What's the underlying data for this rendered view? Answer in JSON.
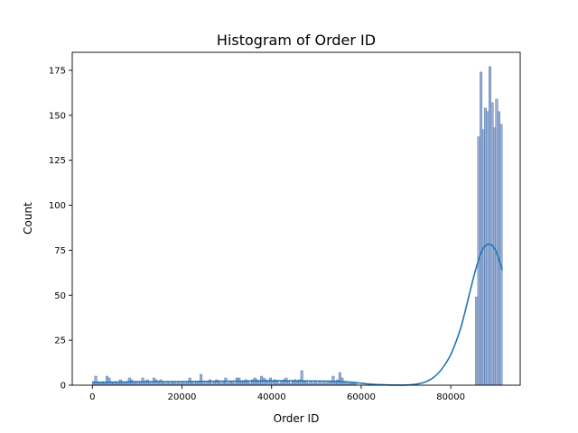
{
  "chart_data": {
    "type": "bar",
    "title": "Histogram of Order ID",
    "xlabel": "Order ID",
    "ylabel": "Count",
    "xlim": [
      -4500,
      95500
    ],
    "ylim": [
      0,
      185
    ],
    "xticks": [
      0,
      20000,
      40000,
      60000,
      80000
    ],
    "yticks": [
      0,
      25,
      50,
      75,
      100,
      125,
      150,
      175
    ],
    "grid": false,
    "bar_color": "#4c72b0",
    "kde_color": "#1f77b4",
    "bin_width": 500,
    "bins": [
      {
        "x0": 0,
        "count": 2
      },
      {
        "x0": 500,
        "count": 5
      },
      {
        "x0": 1000,
        "count": 2
      },
      {
        "x0": 1500,
        "count": 1
      },
      {
        "x0": 2000,
        "count": 2
      },
      {
        "x0": 2500,
        "count": 1
      },
      {
        "x0": 3000,
        "count": 5
      },
      {
        "x0": 3500,
        "count": 4
      },
      {
        "x0": 4000,
        "count": 2
      },
      {
        "x0": 4500,
        "count": 1
      },
      {
        "x0": 5000,
        "count": 2
      },
      {
        "x0": 5500,
        "count": 1
      },
      {
        "x0": 6000,
        "count": 3
      },
      {
        "x0": 6500,
        "count": 2
      },
      {
        "x0": 7000,
        "count": 1
      },
      {
        "x0": 7500,
        "count": 2
      },
      {
        "x0": 8000,
        "count": 4
      },
      {
        "x0": 8500,
        "count": 3
      },
      {
        "x0": 9000,
        "count": 2
      },
      {
        "x0": 9500,
        "count": 2
      },
      {
        "x0": 10000,
        "count": 1
      },
      {
        "x0": 10500,
        "count": 2
      },
      {
        "x0": 11000,
        "count": 4
      },
      {
        "x0": 11500,
        "count": 2
      },
      {
        "x0": 12000,
        "count": 3
      },
      {
        "x0": 12500,
        "count": 2
      },
      {
        "x0": 13000,
        "count": 1
      },
      {
        "x0": 13500,
        "count": 4
      },
      {
        "x0": 14000,
        "count": 3
      },
      {
        "x0": 14500,
        "count": 2
      },
      {
        "x0": 15000,
        "count": 3
      },
      {
        "x0": 15500,
        "count": 2
      },
      {
        "x0": 16000,
        "count": 1
      },
      {
        "x0": 16500,
        "count": 2
      },
      {
        "x0": 17000,
        "count": 1
      },
      {
        "x0": 17500,
        "count": 2
      },
      {
        "x0": 18000,
        "count": 2
      },
      {
        "x0": 18500,
        "count": 1
      },
      {
        "x0": 19000,
        "count": 2
      },
      {
        "x0": 19500,
        "count": 1
      },
      {
        "x0": 20000,
        "count": 2
      },
      {
        "x0": 20500,
        "count": 1
      },
      {
        "x0": 21000,
        "count": 2
      },
      {
        "x0": 21500,
        "count": 4
      },
      {
        "x0": 22000,
        "count": 2
      },
      {
        "x0": 22500,
        "count": 1
      },
      {
        "x0": 23000,
        "count": 2
      },
      {
        "x0": 23500,
        "count": 2
      },
      {
        "x0": 24000,
        "count": 6
      },
      {
        "x0": 24500,
        "count": 2
      },
      {
        "x0": 25000,
        "count": 1
      },
      {
        "x0": 25500,
        "count": 2
      },
      {
        "x0": 26000,
        "count": 3
      },
      {
        "x0": 26500,
        "count": 1
      },
      {
        "x0": 27000,
        "count": 2
      },
      {
        "x0": 27500,
        "count": 3
      },
      {
        "x0": 28000,
        "count": 2
      },
      {
        "x0": 28500,
        "count": 1
      },
      {
        "x0": 29000,
        "count": 2
      },
      {
        "x0": 29500,
        "count": 4
      },
      {
        "x0": 30000,
        "count": 1
      },
      {
        "x0": 30500,
        "count": 2
      },
      {
        "x0": 31000,
        "count": 2
      },
      {
        "x0": 31500,
        "count": 1
      },
      {
        "x0": 32000,
        "count": 4
      },
      {
        "x0": 32500,
        "count": 4
      },
      {
        "x0": 33000,
        "count": 2
      },
      {
        "x0": 33500,
        "count": 2
      },
      {
        "x0": 34000,
        "count": 3
      },
      {
        "x0": 34500,
        "count": 2
      },
      {
        "x0": 35000,
        "count": 1
      },
      {
        "x0": 35500,
        "count": 3
      },
      {
        "x0": 36000,
        "count": 4
      },
      {
        "x0": 36500,
        "count": 3
      },
      {
        "x0": 37000,
        "count": 2
      },
      {
        "x0": 37500,
        "count": 5
      },
      {
        "x0": 38000,
        "count": 4
      },
      {
        "x0": 38500,
        "count": 3
      },
      {
        "x0": 39000,
        "count": 2
      },
      {
        "x0": 39500,
        "count": 4
      },
      {
        "x0": 40000,
        "count": 2
      },
      {
        "x0": 40500,
        "count": 3
      },
      {
        "x0": 41000,
        "count": 2
      },
      {
        "x0": 41500,
        "count": 1
      },
      {
        "x0": 42000,
        "count": 2
      },
      {
        "x0": 42500,
        "count": 3
      },
      {
        "x0": 43000,
        "count": 4
      },
      {
        "x0": 43500,
        "count": 2
      },
      {
        "x0": 44000,
        "count": 1
      },
      {
        "x0": 44500,
        "count": 2
      },
      {
        "x0": 45000,
        "count": 3
      },
      {
        "x0": 45500,
        "count": 2
      },
      {
        "x0": 46000,
        "count": 3
      },
      {
        "x0": 46500,
        "count": 8
      },
      {
        "x0": 47000,
        "count": 2
      },
      {
        "x0": 47500,
        "count": 2
      },
      {
        "x0": 48000,
        "count": 1
      },
      {
        "x0": 48500,
        "count": 2
      },
      {
        "x0": 49000,
        "count": 1
      },
      {
        "x0": 49500,
        "count": 2
      },
      {
        "x0": 50000,
        "count": 1
      },
      {
        "x0": 50500,
        "count": 2
      },
      {
        "x0": 51000,
        "count": 1
      },
      {
        "x0": 51500,
        "count": 2
      },
      {
        "x0": 52000,
        "count": 1
      },
      {
        "x0": 52500,
        "count": 2
      },
      {
        "x0": 53000,
        "count": 2
      },
      {
        "x0": 53500,
        "count": 5
      },
      {
        "x0": 54000,
        "count": 2
      },
      {
        "x0": 54500,
        "count": 3
      },
      {
        "x0": 55000,
        "count": 7
      },
      {
        "x0": 55500,
        "count": 4
      },
      {
        "x0": 56000,
        "count": 2
      },
      {
        "x0": 56500,
        "count": 1
      },
      {
        "x0": 57000,
        "count": 1
      },
      {
        "x0": 57500,
        "count": 1
      },
      {
        "x0": 58000,
        "count": 1
      },
      {
        "x0": 58500,
        "count": 1
      },
      {
        "x0": 85500,
        "count": 49
      },
      {
        "x0": 86000,
        "count": 138
      },
      {
        "x0": 86500,
        "count": 174
      },
      {
        "x0": 87000,
        "count": 142
      },
      {
        "x0": 87500,
        "count": 154
      },
      {
        "x0": 88000,
        "count": 152
      },
      {
        "x0": 88500,
        "count": 177
      },
      {
        "x0": 89000,
        "count": 157
      },
      {
        "x0": 89500,
        "count": 143
      },
      {
        "x0": 90000,
        "count": 159
      },
      {
        "x0": 90500,
        "count": 152
      },
      {
        "x0": 91000,
        "count": 145
      }
    ],
    "kde": {
      "x": [
        0,
        5000,
        10000,
        15000,
        20000,
        25000,
        30000,
        35000,
        40000,
        45000,
        50000,
        55000,
        58000,
        60000,
        62000,
        65000,
        68000,
        70000,
        72000,
        74000,
        76000,
        78000,
        80000,
        82000,
        83000,
        84000,
        85000,
        86000,
        87000,
        88000,
        89000,
        90000,
        91000,
        91500
      ],
      "y": [
        1.5,
        1.7,
        1.9,
        2.0,
        2.0,
        2.1,
        2.2,
        2.3,
        2.4,
        2.4,
        2.3,
        2.1,
        1.6,
        1.1,
        0.6,
        0.2,
        0.05,
        0.1,
        0.5,
        1.5,
        4,
        9,
        17,
        30,
        39,
        49,
        59,
        68,
        75,
        78,
        78,
        75,
        68,
        64
      ]
    }
  }
}
